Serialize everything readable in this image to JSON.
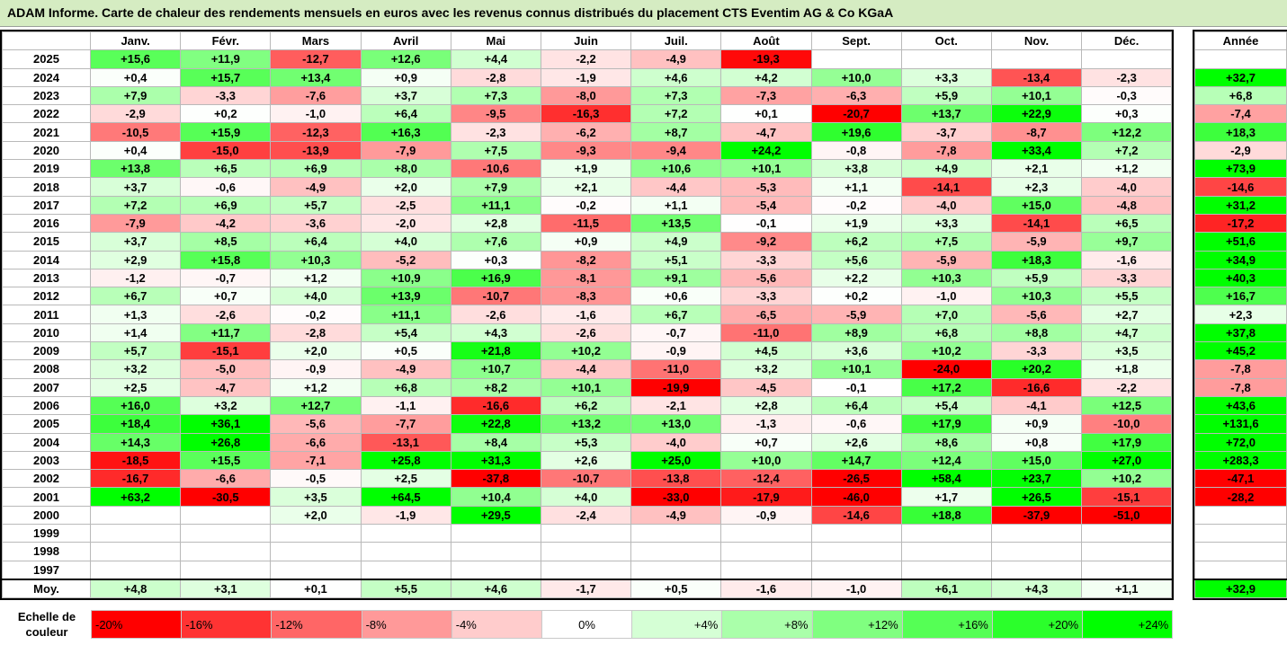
{
  "title": "ADAM Informe. Carte de chaleur des rendements mensuels en euros avec les revenus connus distribués du placement CTS Eventim AG & Co KGaA",
  "colors": {
    "negative_max": "#ff0000",
    "positive_max": "#00ff00",
    "neutral": "#ffffff"
  },
  "chart_data": {
    "type": "heatmap",
    "month_labels": [
      "Janv.",
      "Févr.",
      "Mars",
      "Avril",
      "Mai",
      "Juin",
      "Juil.",
      "Août",
      "Sept.",
      "Oct.",
      "Nov.",
      "Déc."
    ],
    "year_header": "Année",
    "rows": [
      {
        "year": "2025",
        "months": [
          "+15,6",
          "+11,9",
          "-12,7",
          "+12,6",
          "+4,4",
          "-2,2",
          "-4,9",
          "-19,3",
          "",
          "",
          "",
          ""
        ],
        "total": ""
      },
      {
        "year": "2024",
        "months": [
          "+0,4",
          "+15,7",
          "+13,4",
          "+0,9",
          "-2,8",
          "-1,9",
          "+4,6",
          "+4,2",
          "+10,0",
          "+3,3",
          "-13,4",
          "-2,3"
        ],
        "total": "+32,7"
      },
      {
        "year": "2023",
        "months": [
          "+7,9",
          "-3,3",
          "-7,6",
          "+3,7",
          "+7,3",
          "-8,0",
          "+7,3",
          "-7,3",
          "-6,3",
          "+5,9",
          "+10,1",
          "-0,3"
        ],
        "total": "+6,8"
      },
      {
        "year": "2022",
        "months": [
          "-2,9",
          "+0,2",
          "-1,0",
          "+6,4",
          "-9,5",
          "-16,3",
          "+7,2",
          "+0,1",
          "-20,7",
          "+13,7",
          "+22,9",
          "+0,3"
        ],
        "total": "-7,4"
      },
      {
        "year": "2021",
        "months": [
          "-10,5",
          "+15,9",
          "-12,3",
          "+16,3",
          "-2,3",
          "-6,2",
          "+8,7",
          "-4,7",
          "+19,6",
          "-3,7",
          "-8,7",
          "+12,2"
        ],
        "total": "+18,3"
      },
      {
        "year": "2020",
        "months": [
          "+0,4",
          "-15,0",
          "-13,9",
          "-7,9",
          "+7,5",
          "-9,3",
          "-9,4",
          "+24,2",
          "-0,8",
          "-7,8",
          "+33,4",
          "+7,2"
        ],
        "total": "-2,9"
      },
      {
        "year": "2019",
        "months": [
          "+13,8",
          "+6,5",
          "+6,9",
          "+8,0",
          "-10,6",
          "+1,9",
          "+10,6",
          "+10,1",
          "+3,8",
          "+4,9",
          "+2,1",
          "+1,2"
        ],
        "total": "+73,9"
      },
      {
        "year": "2018",
        "months": [
          "+3,7",
          "-0,6",
          "-4,9",
          "+2,0",
          "+7,9",
          "+2,1",
          "-4,4",
          "-5,3",
          "+1,1",
          "-14,1",
          "+2,3",
          "-4,0"
        ],
        "total": "-14,6"
      },
      {
        "year": "2017",
        "months": [
          "+7,2",
          "+6,9",
          "+5,7",
          "-2,5",
          "+11,1",
          "-0,2",
          "+1,1",
          "-5,4",
          "-0,2",
          "-4,0",
          "+15,0",
          "-4,8"
        ],
        "total": "+31,2"
      },
      {
        "year": "2016",
        "months": [
          "-7,9",
          "-4,2",
          "-3,6",
          "-2,0",
          "+2,8",
          "-11,5",
          "+13,5",
          "-0,1",
          "+1,9",
          "+3,3",
          "-14,1",
          "+6,5"
        ],
        "total": "-17,2"
      },
      {
        "year": "2015",
        "months": [
          "+3,7",
          "+8,5",
          "+6,4",
          "+4,0",
          "+7,6",
          "+0,9",
          "+4,9",
          "-9,2",
          "+6,2",
          "+7,5",
          "-5,9",
          "+9,7"
        ],
        "total": "+51,6"
      },
      {
        "year": "2014",
        "months": [
          "+2,9",
          "+15,8",
          "+10,3",
          "-5,2",
          "+0,3",
          "-8,2",
          "+5,1",
          "-3,3",
          "+5,6",
          "-5,9",
          "+18,3",
          "-1,6"
        ],
        "total": "+34,9"
      },
      {
        "year": "2013",
        "months": [
          "-1,2",
          "-0,7",
          "+1,2",
          "+10,9",
          "+16,9",
          "-8,1",
          "+9,1",
          "-5,6",
          "+2,2",
          "+10,3",
          "+5,9",
          "-3,3"
        ],
        "total": "+40,3"
      },
      {
        "year": "2012",
        "months": [
          "+6,7",
          "+0,7",
          "+4,0",
          "+13,9",
          "-10,7",
          "-8,3",
          "+0,6",
          "-3,3",
          "+0,2",
          "-1,0",
          "+10,3",
          "+5,5"
        ],
        "total": "+16,7"
      },
      {
        "year": "2011",
        "months": [
          "+1,3",
          "-2,6",
          "-0,2",
          "+11,1",
          "-2,6",
          "-1,6",
          "+6,7",
          "-6,5",
          "-5,9",
          "+7,0",
          "-5,6",
          "+2,7"
        ],
        "total": "+2,3"
      },
      {
        "year": "2010",
        "months": [
          "+1,4",
          "+11,7",
          "-2,8",
          "+5,4",
          "+4,3",
          "-2,6",
          "-0,7",
          "-11,0",
          "+8,9",
          "+6,8",
          "+8,8",
          "+4,7"
        ],
        "total": "+37,8"
      },
      {
        "year": "2009",
        "months": [
          "+5,7",
          "-15,1",
          "+2,0",
          "+0,5",
          "+21,8",
          "+10,2",
          "-0,9",
          "+4,5",
          "+3,6",
          "+10,2",
          "-3,3",
          "+3,5"
        ],
        "total": "+45,2"
      },
      {
        "year": "2008",
        "months": [
          "+3,2",
          "-5,0",
          "-0,9",
          "-4,9",
          "+10,7",
          "-4,4",
          "-11,0",
          "+3,2",
          "+10,1",
          "-24,0",
          "+20,2",
          "+1,8"
        ],
        "total": "-7,8"
      },
      {
        "year": "2007",
        "months": [
          "+2,5",
          "-4,7",
          "+1,2",
          "+6,8",
          "+8,2",
          "+10,1",
          "-19,9",
          "-4,5",
          "-0,1",
          "+17,2",
          "-16,6",
          "-2,2"
        ],
        "total": "-7,8"
      },
      {
        "year": "2006",
        "months": [
          "+16,0",
          "+3,2",
          "+12,7",
          "-1,1",
          "-16,6",
          "+6,2",
          "-2,1",
          "+2,8",
          "+6,4",
          "+5,4",
          "-4,1",
          "+12,5"
        ],
        "total": "+43,6"
      },
      {
        "year": "2005",
        "months": [
          "+18,4",
          "+36,1",
          "-5,6",
          "-7,7",
          "+22,8",
          "+13,2",
          "+13,0",
          "-1,3",
          "-0,6",
          "+17,9",
          "+0,9",
          "-10,0"
        ],
        "total": "+131,6"
      },
      {
        "year": "2004",
        "months": [
          "+14,3",
          "+26,8",
          "-6,6",
          "-13,1",
          "+8,4",
          "+5,3",
          "-4,0",
          "+0,7",
          "+2,6",
          "+8,6",
          "+0,8",
          "+17,9"
        ],
        "total": "+72,0"
      },
      {
        "year": "2003",
        "months": [
          "-18,5",
          "+15,5",
          "-7,1",
          "+25,8",
          "+31,3",
          "+2,6",
          "+25,0",
          "+10,0",
          "+14,7",
          "+12,4",
          "+15,0",
          "+27,0"
        ],
        "total": "+283,3"
      },
      {
        "year": "2002",
        "months": [
          "-16,7",
          "-6,6",
          "-0,5",
          "+2,5",
          "-37,8",
          "-10,7",
          "-13,8",
          "-12,4",
          "-26,5",
          "+58,4",
          "+23,7",
          "+10,2"
        ],
        "total": "-47,1"
      },
      {
        "year": "2001",
        "months": [
          "+63,2",
          "-30,5",
          "+3,5",
          "+64,5",
          "+10,4",
          "+4,0",
          "-33,0",
          "-17,9",
          "-46,0",
          "+1,7",
          "+26,5",
          "-15,1"
        ],
        "total": "-28,2"
      },
      {
        "year": "2000",
        "months": [
          "",
          "",
          "+2,0",
          "-1,9",
          "+29,5",
          "-2,4",
          "-4,9",
          "-0,9",
          "-14,6",
          "+18,8",
          "-37,9",
          "-51,0"
        ],
        "total": ""
      },
      {
        "year": "1999",
        "months": [
          "",
          "",
          "",
          "",
          "",
          "",
          "",
          "",
          "",
          "",
          "",
          ""
        ],
        "total": ""
      },
      {
        "year": "1998",
        "months": [
          "",
          "",
          "",
          "",
          "",
          "",
          "",
          "",
          "",
          "",
          "",
          ""
        ],
        "total": ""
      },
      {
        "year": "1997",
        "months": [
          "",
          "",
          "",
          "",
          "",
          "",
          "",
          "",
          "",
          "",
          "",
          ""
        ],
        "total": ""
      }
    ],
    "average": {
      "label": "Moy.",
      "months": [
        "+4,8",
        "+3,1",
        "+0,1",
        "+5,5",
        "+4,6",
        "-1,7",
        "+0,5",
        "-1,6",
        "-1,0",
        "+6,1",
        "+4,3",
        "+1,1"
      ],
      "total": "+32,9"
    },
    "scale": {
      "label": "Echelle de couleur",
      "steps": [
        {
          "text": "-20%",
          "value": -20
        },
        {
          "text": "-16%",
          "value": -16
        },
        {
          "text": "-12%",
          "value": -12
        },
        {
          "text": "-8%",
          "value": -8
        },
        {
          "text": "-4%",
          "value": -4
        },
        {
          "text": "0%",
          "value": 0
        },
        {
          "text": "+4%",
          "value": 4
        },
        {
          "text": "+8%",
          "value": 8
        },
        {
          "text": "+12%",
          "value": 12
        },
        {
          "text": "+16%",
          "value": 16
        },
        {
          "text": "+20%",
          "value": 20
        },
        {
          "text": "+24%",
          "value": 24
        }
      ]
    }
  }
}
